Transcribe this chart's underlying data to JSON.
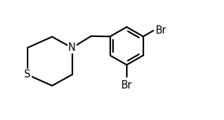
{
  "background_color": "#ffffff",
  "line_color": "#000000",
  "line_width": 1.6,
  "font_size": 10.5,
  "N_label": "N",
  "S_label": "S",
  "Br1_label": "Br",
  "Br2_label": "Br",
  "xlim": [
    -0.3,
    6.0
  ],
  "ylim": [
    -2.0,
    1.8
  ]
}
